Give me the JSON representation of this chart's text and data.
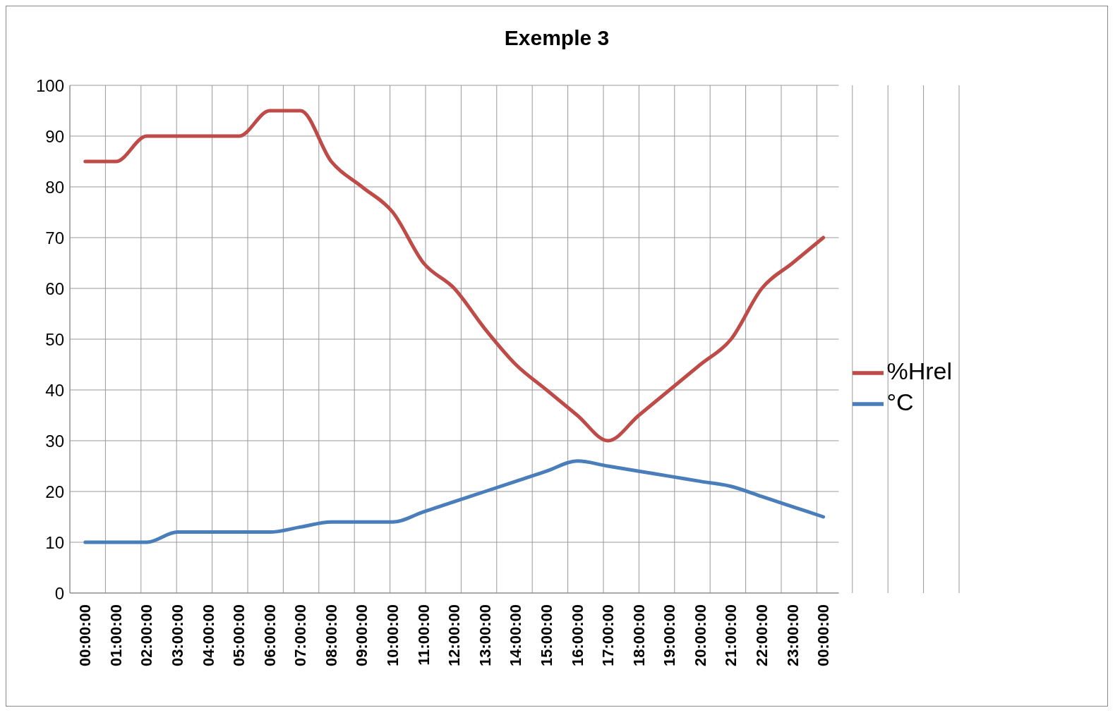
{
  "chart_data": {
    "type": "line",
    "title": "Exemple 3",
    "categories": [
      "00:00:00",
      "01:00:00",
      "02:00:00",
      "03:00:00",
      "04:00:00",
      "05:00:00",
      "06:00:00",
      "07:00:00",
      "08:00:00",
      "09:00:00",
      "10:00:00",
      "11:00:00",
      "12:00:00",
      "13:00:00",
      "14:00:00",
      "15:00:00",
      "16:00:00",
      "17:00:00",
      "18:00:00",
      "19:00:00",
      "20:00:00",
      "21:00:00",
      "22:00:00",
      "23:00:00",
      "00:00:00"
    ],
    "series": [
      {
        "name": "°C",
        "color": "#4a7ebb",
        "values": [
          10,
          10,
          10,
          12,
          12,
          12,
          12,
          13,
          14,
          14,
          14,
          16,
          18,
          20,
          22,
          24,
          26,
          25,
          24,
          23,
          22,
          21,
          19,
          17,
          15
        ]
      },
      {
        "name": "%Hrel",
        "color": "#be4b48",
        "values": [
          85,
          85,
          90,
          90,
          90,
          90,
          95,
          95,
          85,
          80,
          75,
          65,
          60,
          52,
          45,
          40,
          35,
          30,
          35,
          40,
          45,
          50,
          60,
          65,
          70
        ]
      }
    ],
    "ylim": [
      0,
      100
    ],
    "yticks": [
      0,
      10,
      20,
      30,
      40,
      50,
      60,
      70,
      80,
      90,
      100
    ],
    "grid": true,
    "legend": "right",
    "marker": "none",
    "line_style": "solid"
  }
}
